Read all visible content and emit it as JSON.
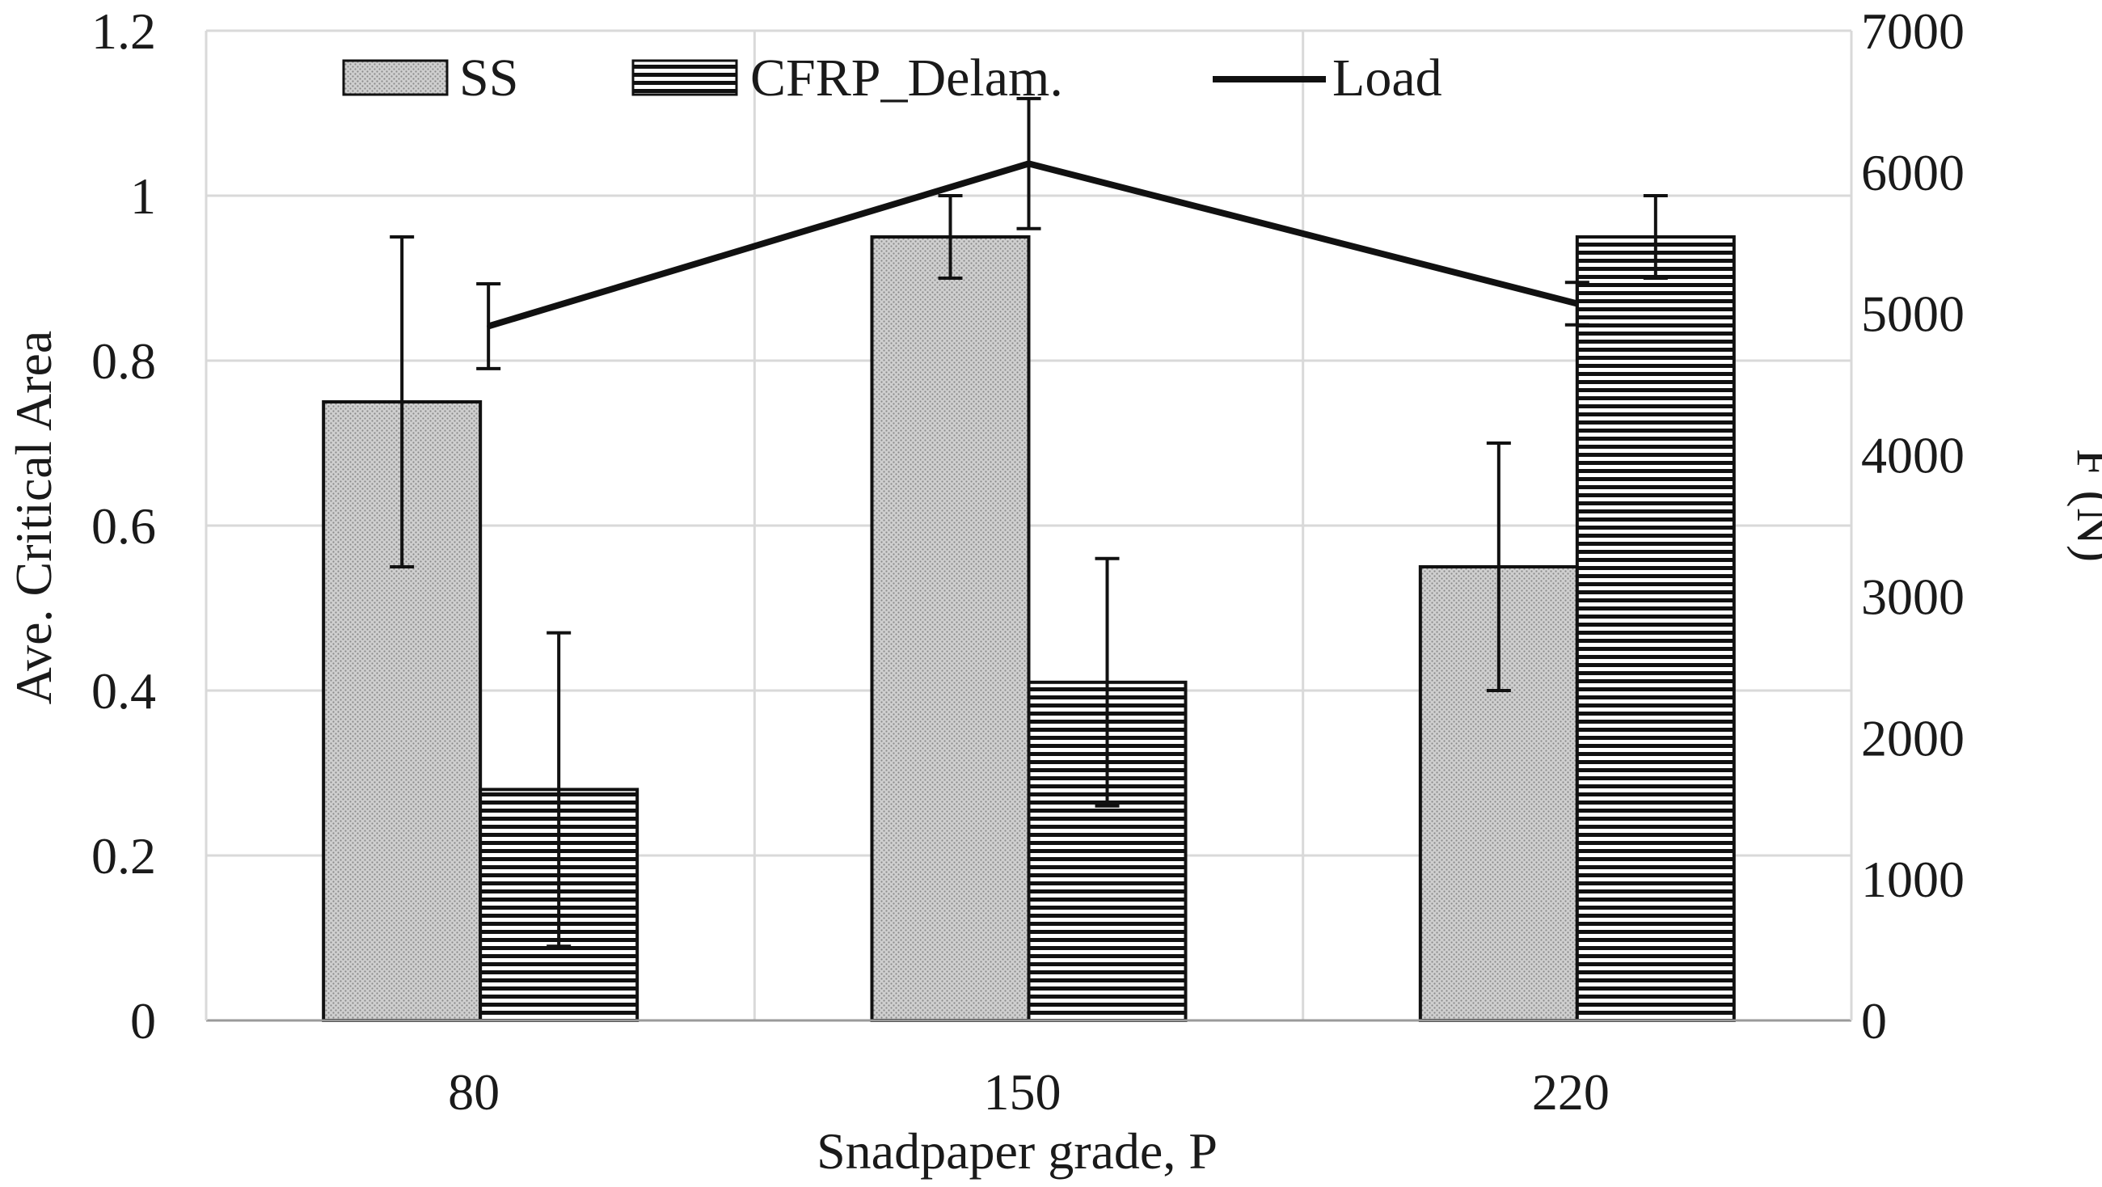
{
  "chart_data": {
    "type": "bar",
    "categories": [
      "80",
      "150",
      "220"
    ],
    "xlabel": "Snadpaper grade, P",
    "ylabel": "Ave. Critical Area",
    "y2label": "F (N)",
    "ylim": [
      0,
      1.2
    ],
    "y2lim": [
      0,
      7000
    ],
    "yticks": [
      "0",
      "0.2",
      "0.4",
      "0.6",
      "0.8",
      "1",
      "1.2"
    ],
    "y2ticks": [
      "0",
      "1000",
      "2000",
      "3000",
      "4000",
      "5000",
      "6000",
      "7000"
    ],
    "grid": true,
    "legend_position": "top",
    "series": [
      {
        "name": "SS",
        "kind": "bar",
        "axis": "left",
        "pattern": "dotted-gray",
        "values": [
          0.75,
          0.95,
          0.55
        ],
        "errors": [
          0.2,
          0.05,
          0.15
        ]
      },
      {
        "name": "CFRP_Delam.",
        "kind": "bar",
        "axis": "left",
        "pattern": "horizontal-lines",
        "values": [
          0.28,
          0.41,
          0.95
        ],
        "errors": [
          0.19,
          0.15,
          0.05
        ]
      },
      {
        "name": "Load",
        "kind": "line",
        "axis": "right",
        "values": [
          4910,
          6060,
          5070
        ],
        "errors": [
          300,
          460,
          150
        ]
      }
    ],
    "colors": {
      "bar_fill": "#c8c8c8",
      "stroke": "#111111",
      "grid": "#d9d9d9"
    }
  }
}
